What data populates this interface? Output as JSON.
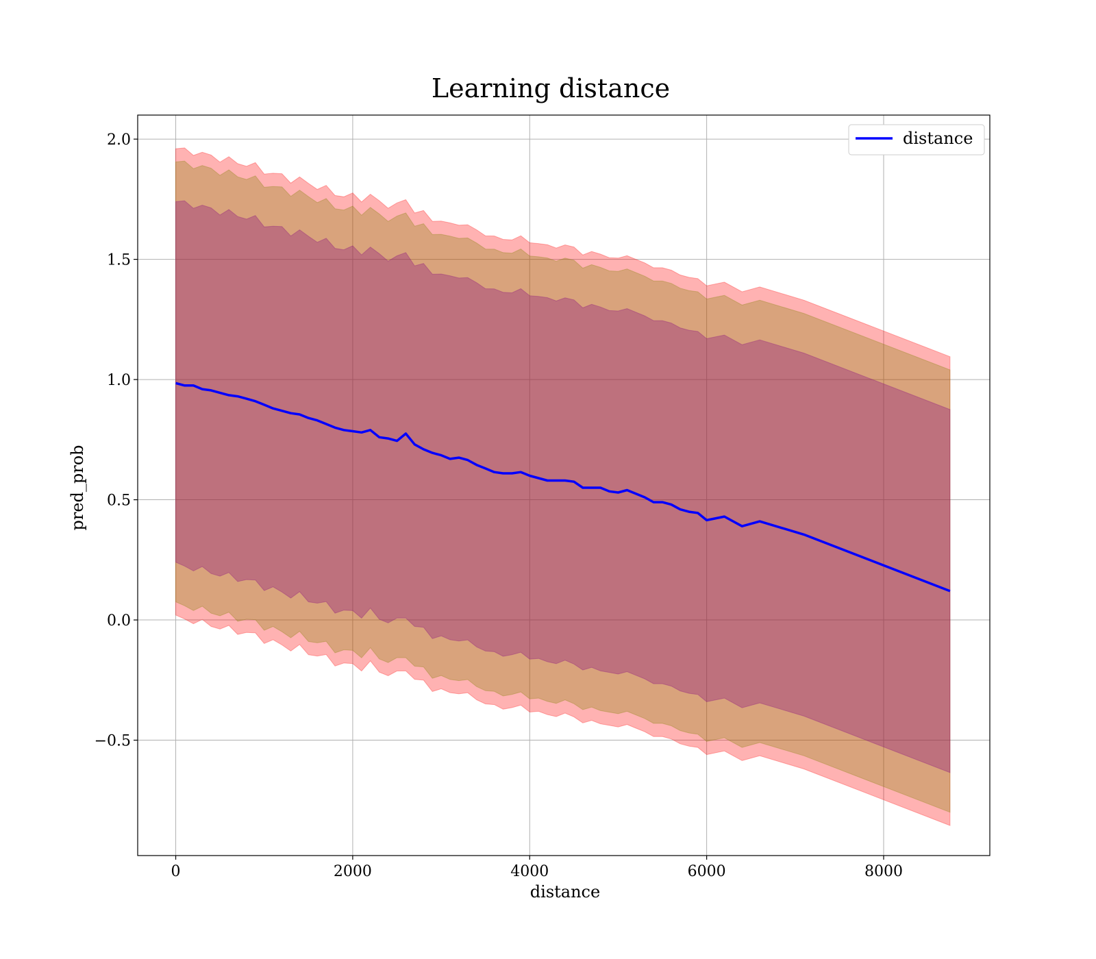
{
  "chart_data": {
    "type": "line",
    "title": "Learning distance",
    "xlabel": "distance",
    "ylabel": "pred_prob",
    "xlim": [
      -430,
      9200
    ],
    "ylim": [
      -0.98,
      2.1
    ],
    "xticks": [
      0,
      2000,
      4000,
      6000,
      8000
    ],
    "xtick_labels": [
      "0",
      "2000",
      "4000",
      "6000",
      "8000"
    ],
    "yticks": [
      -0.5,
      0.0,
      0.5,
      1.0,
      1.5,
      2.0
    ],
    "ytick_labels": [
      "−0.5",
      "0.0",
      "0.5",
      "1.0",
      "1.5",
      "2.0"
    ],
    "grid": true,
    "legend": {
      "position": "top-right",
      "entries": [
        "distance"
      ]
    },
    "colors": {
      "line": "#0000ff",
      "band_outer": "#ff0000",
      "band_middle": "#808000",
      "band_inner": "#800080"
    },
    "series": [
      {
        "name": "distance",
        "x": [
          0,
          100,
          200,
          300,
          400,
          500,
          600,
          700,
          800,
          900,
          1000,
          1100,
          1200,
          1300,
          1400,
          1500,
          1600,
          1700,
          1800,
          1900,
          2000,
          2100,
          2200,
          2300,
          2400,
          2500,
          2600,
          2700,
          2800,
          2900,
          3000,
          3100,
          3200,
          3300,
          3400,
          3500,
          3600,
          3700,
          3800,
          3900,
          4000,
          4100,
          4200,
          4300,
          4400,
          4500,
          4600,
          4700,
          4800,
          4900,
          5000,
          5100,
          5200,
          5300,
          5400,
          5500,
          5600,
          5700,
          5800,
          5900,
          6000,
          6200,
          6400,
          6600,
          7100,
          8750
        ],
        "y": [
          0.985,
          0.975,
          0.975,
          0.96,
          0.955,
          0.945,
          0.935,
          0.93,
          0.92,
          0.91,
          0.895,
          0.88,
          0.87,
          0.86,
          0.855,
          0.84,
          0.83,
          0.815,
          0.8,
          0.79,
          0.785,
          0.78,
          0.79,
          0.76,
          0.755,
          0.745,
          0.775,
          0.73,
          0.71,
          0.695,
          0.685,
          0.67,
          0.675,
          0.665,
          0.645,
          0.63,
          0.615,
          0.61,
          0.61,
          0.615,
          0.6,
          0.59,
          0.58,
          0.58,
          0.58,
          0.575,
          0.55,
          0.55,
          0.55,
          0.535,
          0.53,
          0.54,
          0.525,
          0.51,
          0.49,
          0.49,
          0.48,
          0.46,
          0.45,
          0.445,
          0.415,
          0.43,
          0.39,
          0.41,
          0.355,
          0.12
        ]
      }
    ],
    "bands": [
      {
        "level": "outer",
        "half_width": 0.975
      },
      {
        "level": "middle",
        "half_width": 0.92
      },
      {
        "level": "inner",
        "half_width": 0.755
      }
    ]
  }
}
